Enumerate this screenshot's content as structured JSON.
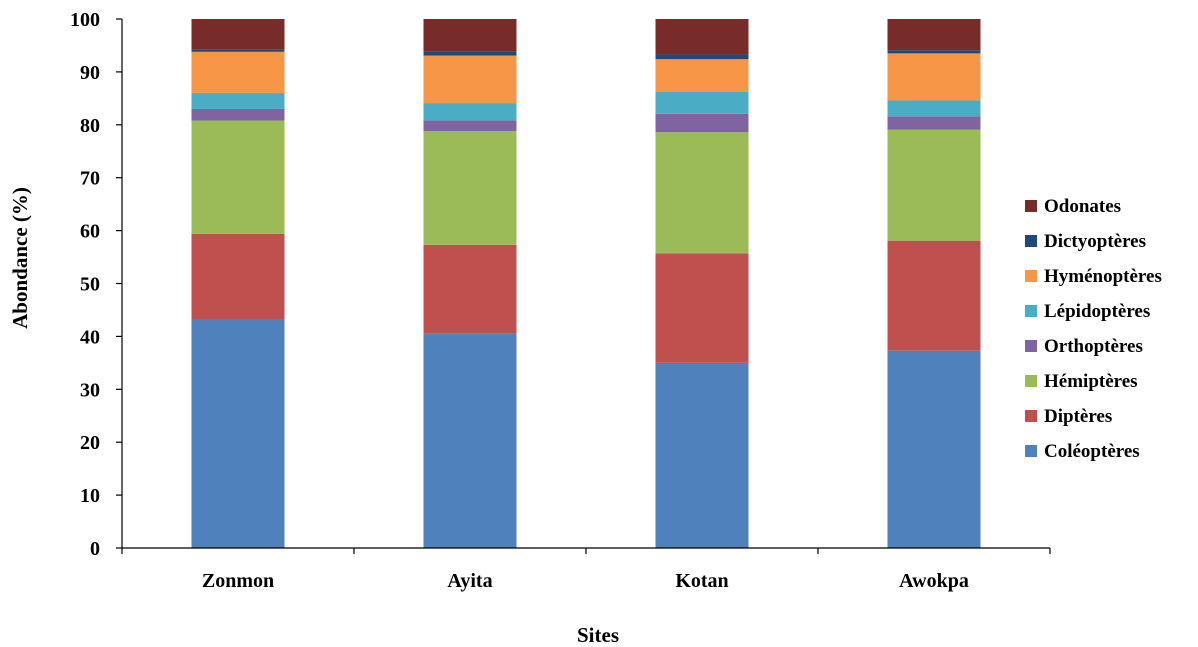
{
  "chart_data": {
    "type": "bar",
    "stacked": true,
    "categories": [
      "Zonmon",
      "Ayita",
      "Kotan",
      "Awokpa"
    ],
    "xlabel": "Sites",
    "ylabel": "Abondance (%)",
    "ylim": [
      0,
      100
    ],
    "ytick_step": 10,
    "grid": false,
    "legend_position": "right",
    "series": [
      {
        "name": "Coléoptères",
        "color": "#4F81BD",
        "values": [
          43.2,
          40.5,
          35.0,
          37.3
        ]
      },
      {
        "name": "Diptères",
        "color": "#C0504D",
        "values": [
          16.2,
          16.8,
          20.7,
          20.8
        ]
      },
      {
        "name": "Hémiptères",
        "color": "#9BBB59",
        "values": [
          21.4,
          21.5,
          22.9,
          21.0
        ]
      },
      {
        "name": "Orthoptères",
        "color": "#8064A2",
        "values": [
          2.2,
          2.0,
          3.5,
          2.5
        ]
      },
      {
        "name": "Lépidoptères",
        "color": "#4BACC6",
        "values": [
          3.0,
          3.3,
          4.1,
          3.0
        ]
      },
      {
        "name": "Hyménoptères",
        "color": "#F79646",
        "values": [
          7.8,
          9.0,
          6.2,
          8.9
        ]
      },
      {
        "name": "Dictyoptères",
        "color": "#1F497D",
        "values": [
          0.4,
          0.7,
          0.9,
          0.6
        ]
      },
      {
        "name": "Odonates",
        "color": "#772C2A",
        "values": [
          5.8,
          6.2,
          6.7,
          5.9
        ]
      }
    ]
  }
}
